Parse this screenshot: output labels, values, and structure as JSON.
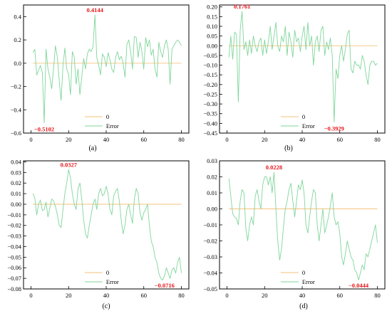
{
  "chart_data": [
    {
      "type": "line",
      "caption": "(a)",
      "xlim": [
        -4,
        84
      ],
      "ylim": [
        -0.6,
        0.5
      ],
      "xticks": [
        0,
        20,
        40,
        60,
        80
      ],
      "xtick_labels": [
        "0",
        "20",
        "40",
        "60",
        "80"
      ],
      "yticks": [
        -0.6,
        -0.4,
        -0.2,
        0.0,
        0.2,
        0.4
      ],
      "ytick_labels": [
        "−0.6",
        "−0.4",
        "−0.2",
        "0.0",
        "0.2",
        "0.4"
      ],
      "legend": {
        "position": "bottom-center",
        "entries": [
          "0",
          "Error"
        ]
      },
      "annotations": [
        {
          "text": "0.4144",
          "x": 34,
          "y": 0.4144
        },
        {
          "text": "−0.5102",
          "x": 7,
          "y": -0.5102
        }
      ],
      "series": [
        {
          "name": "0",
          "color": "#f5c27a",
          "x": [
            1,
            80
          ],
          "y": [
            0,
            0
          ]
        },
        {
          "name": "Error",
          "color": "#7fd69a",
          "x": [
            1,
            2,
            3,
            4,
            5,
            6,
            7,
            8,
            9,
            10,
            11,
            12,
            13,
            14,
            15,
            16,
            17,
            18,
            19,
            20,
            21,
            22,
            23,
            24,
            25,
            26,
            27,
            28,
            29,
            30,
            31,
            32,
            33,
            34,
            35,
            36,
            37,
            38,
            39,
            40,
            41,
            42,
            43,
            44,
            45,
            46,
            47,
            48,
            49,
            50,
            51,
            52,
            53,
            54,
            55,
            56,
            57,
            58,
            59,
            60,
            61,
            62,
            63,
            64,
            65,
            66,
            67,
            68,
            69,
            70,
            71,
            72,
            73,
            74,
            75,
            76,
            77,
            78,
            79,
            80
          ],
          "y": [
            0.09,
            0.12,
            -0.1,
            -0.06,
            -0.02,
            -0.08,
            -0.5102,
            0.12,
            -0.05,
            -0.12,
            -0.22,
            -0.04,
            0.15,
            0.05,
            -0.15,
            -0.32,
            -0.02,
            0.13,
            -0.05,
            -0.1,
            -0.27,
            0.1,
            0.05,
            -0.18,
            -0.05,
            -0.27,
            -0.12,
            0.04,
            -0.05,
            0.08,
            0.12,
            0.1,
            0.14,
            0.4144,
            0.05,
            -0.02,
            -0.1,
            0.08,
            0.05,
            -0.03,
            0.09,
            0.03,
            -0.05,
            -0.08,
            0.05,
            0.1,
            0.03,
            0.06,
            0.0,
            -0.12,
            0.16,
            0.2,
            0.1,
            -0.05,
            0.23,
            0.22,
            0.05,
            0.18,
            0.1,
            -0.05,
            0.22,
            0.14,
            0.2,
            0.07,
            0.12,
            -0.05,
            -0.12,
            0.18,
            0.1,
            0.05,
            0.15,
            0.2,
            0.12,
            -0.18,
            0.12,
            0.15,
            0.18,
            0.2,
            0.18,
            0.15
          ]
        }
      ]
    },
    {
      "type": "line",
      "caption": "(b)",
      "xlim": [
        -4,
        84
      ],
      "ylim": [
        -0.45,
        0.21
      ],
      "xticks": [
        0,
        20,
        40,
        60,
        80
      ],
      "xtick_labels": [
        "0",
        "20",
        "40",
        "60",
        "80"
      ],
      "yticks": [
        -0.45,
        -0.4,
        -0.35,
        -0.3,
        -0.25,
        -0.2,
        -0.15,
        -0.1,
        -0.05,
        0.0,
        0.05,
        0.1,
        0.15,
        0.2
      ],
      "ytick_labels": [
        "−0.45",
        "−0.40",
        "−0.35",
        "−0.30",
        "−0.25",
        "−0.20",
        "−0.15",
        "−0.10",
        "−0.05",
        "0.00",
        "0.05",
        "0.10",
        "0.15",
        "0.20"
      ],
      "legend": {
        "position": "bottom-center",
        "entries": [
          "0",
          "Error"
        ]
      },
      "annotations": [
        {
          "text": "0.1761",
          "x": 8,
          "y": 0.1761
        },
        {
          "text": "−0.3929",
          "x": 57,
          "y": -0.3929
        }
      ],
      "series": [
        {
          "name": "0",
          "color": "#f5c27a",
          "x": [
            1,
            80
          ],
          "y": [
            0,
            0
          ]
        },
        {
          "name": "Error",
          "color": "#7fd69a",
          "x": [
            1,
            2,
            3,
            4,
            5,
            6,
            7,
            8,
            9,
            10,
            11,
            12,
            13,
            14,
            15,
            16,
            17,
            18,
            19,
            20,
            21,
            22,
            23,
            24,
            25,
            26,
            27,
            28,
            29,
            30,
            31,
            32,
            33,
            34,
            35,
            36,
            37,
            38,
            39,
            40,
            41,
            42,
            43,
            44,
            45,
            46,
            47,
            48,
            49,
            50,
            51,
            52,
            53,
            54,
            55,
            56,
            57,
            58,
            59,
            60,
            61,
            62,
            63,
            64,
            65,
            66,
            67,
            68,
            69,
            70,
            71,
            72,
            73,
            74,
            75,
            76,
            77,
            78,
            79,
            80
          ],
          "y": [
            -0.06,
            0.05,
            -0.07,
            0.07,
            0.06,
            -0.29,
            0.08,
            0.1761,
            -0.02,
            0.02,
            -0.05,
            0.03,
            -0.04,
            0.05,
            0.0,
            -0.03,
            0.02,
            0.04,
            -0.05,
            0.03,
            -0.04,
            0.02,
            0.1,
            -0.02,
            0.05,
            0.12,
            0.0,
            -0.03,
            0.05,
            0.02,
            0.1,
            -0.05,
            0.07,
            0.02,
            -0.06,
            0.08,
            0.02,
            0.04,
            -0.03,
            0.05,
            0.1,
            -0.02,
            0.12,
            0.0,
            0.05,
            -0.1,
            0.02,
            0.05,
            -0.03,
            0.08,
            0.1,
            -0.05,
            0.02,
            -0.02,
            0.04,
            -0.05,
            -0.3929,
            -0.12,
            -0.17,
            -0.05,
            0.0,
            -0.08,
            -0.02,
            0.06,
            0.08,
            -0.12,
            -0.14,
            -0.08,
            -0.1,
            -0.1,
            -0.12,
            -0.05,
            -0.08,
            -0.15,
            -0.2,
            -0.1,
            -0.08,
            -0.08,
            -0.1,
            -0.09
          ]
        }
      ]
    },
    {
      "type": "line",
      "caption": "(c)",
      "xlim": [
        -4,
        84
      ],
      "ylim": [
        -0.08,
        0.041
      ],
      "xticks": [
        0,
        20,
        40,
        60,
        80
      ],
      "xtick_labels": [
        "0",
        "20",
        "40",
        "60",
        "80"
      ],
      "yticks": [
        -0.08,
        -0.07,
        -0.06,
        -0.05,
        -0.04,
        -0.03,
        -0.02,
        -0.01,
        0.0,
        0.01,
        0.02,
        0.03,
        0.04
      ],
      "ytick_labels": [
        "−0.08",
        "−0.07",
        "−0.06",
        "−0.05",
        "−0.04",
        "−0.03",
        "−0.02",
        "−0.01",
        "0.00",
        "0.01",
        "0.02",
        "0.03",
        "0.04"
      ],
      "legend": {
        "position": "bottom-center",
        "entries": [
          "0",
          "Error"
        ]
      },
      "annotations": [
        {
          "text": "0.0327",
          "x": 20,
          "y": 0.0327
        },
        {
          "text": "−0.0716",
          "x": 71,
          "y": -0.0716
        }
      ],
      "series": [
        {
          "name": "0",
          "color": "#f5c27a",
          "x": [
            1,
            80
          ],
          "y": [
            0,
            0
          ]
        },
        {
          "name": "Error",
          "color": "#7fd69a",
          "x": [
            1,
            2,
            3,
            4,
            5,
            6,
            7,
            8,
            9,
            10,
            11,
            12,
            13,
            14,
            15,
            16,
            17,
            18,
            19,
            20,
            21,
            22,
            23,
            24,
            25,
            26,
            27,
            28,
            29,
            30,
            31,
            32,
            33,
            34,
            35,
            36,
            37,
            38,
            39,
            40,
            41,
            42,
            43,
            44,
            45,
            46,
            47,
            48,
            49,
            50,
            51,
            52,
            53,
            54,
            55,
            56,
            57,
            58,
            59,
            60,
            61,
            62,
            63,
            64,
            65,
            66,
            67,
            68,
            69,
            70,
            71,
            72,
            73,
            74,
            75,
            76,
            77,
            78,
            79,
            80
          ],
          "y": [
            0.01,
            0.006,
            -0.01,
            0.0,
            0.004,
            -0.006,
            -0.005,
            0.002,
            -0.012,
            -0.004,
            0.005,
            0.003,
            -0.002,
            -0.01,
            -0.02,
            -0.022,
            -0.005,
            0.01,
            0.02,
            0.0327,
            0.025,
            0.01,
            0.0,
            -0.005,
            0.015,
            0.02,
            0.005,
            -0.015,
            -0.028,
            -0.032,
            -0.02,
            -0.01,
            0.0,
            0.005,
            -0.005,
            0.01,
            0.015,
            0.008,
            0.01,
            0.017,
            0.01,
            -0.005,
            -0.01,
            0.008,
            0.012,
            0.015,
            0.003,
            -0.015,
            -0.028,
            -0.02,
            -0.005,
            0.0,
            -0.01,
            -0.018,
            0.005,
            0.015,
            0.01,
            -0.008,
            -0.015,
            -0.008,
            -0.005,
            0.0,
            -0.02,
            -0.035,
            -0.04,
            -0.05,
            -0.055,
            -0.065,
            -0.07,
            -0.0716,
            -0.068,
            -0.06,
            -0.065,
            -0.07,
            -0.062,
            -0.06,
            -0.065,
            -0.055,
            -0.05,
            -0.065
          ]
        }
      ]
    },
    {
      "type": "line",
      "caption": "(d)",
      "xlim": [
        -4,
        84
      ],
      "ylim": [
        -0.05,
        0.03
      ],
      "xticks": [
        0,
        20,
        40,
        60,
        80
      ],
      "xtick_labels": [
        "0",
        "20",
        "40",
        "60",
        "80"
      ],
      "yticks": [
        -0.05,
        -0.04,
        -0.03,
        -0.02,
        -0.01,
        0.0,
        0.01,
        0.02,
        0.03
      ],
      "ytick_labels": [
        "−0.05",
        "−0.04",
        "−0.03",
        "−0.02",
        "−0.01",
        "0.00",
        "0.01",
        "0.02",
        "0.03"
      ],
      "legend": {
        "position": "bottom-center",
        "entries": [
          "0",
          "Error"
        ]
      },
      "annotations": [
        {
          "text": "0.0228",
          "x": 25,
          "y": 0.0228
        },
        {
          "text": "−0.0444",
          "x": 70,
          "y": -0.0444
        }
      ],
      "series": [
        {
          "name": "0",
          "color": "#f5c27a",
          "x": [
            1,
            80
          ],
          "y": [
            0,
            0
          ]
        },
        {
          "name": "Error",
          "color": "#7fd69a",
          "x": [
            1,
            2,
            3,
            4,
            5,
            6,
            7,
            8,
            9,
            10,
            11,
            12,
            13,
            14,
            15,
            16,
            17,
            18,
            19,
            20,
            21,
            22,
            23,
            24,
            25,
            26,
            27,
            28,
            29,
            30,
            31,
            32,
            33,
            34,
            35,
            36,
            37,
            38,
            39,
            40,
            41,
            42,
            43,
            44,
            45,
            46,
            47,
            48,
            49,
            50,
            51,
            52,
            53,
            54,
            55,
            56,
            57,
            58,
            59,
            60,
            61,
            62,
            63,
            64,
            65,
            66,
            67,
            68,
            69,
            70,
            71,
            72,
            73,
            74,
            75,
            76,
            77,
            78,
            79,
            80
          ],
          "y": [
            0.019,
            0.008,
            -0.003,
            -0.005,
            -0.006,
            -0.01,
            0.005,
            0.012,
            0.01,
            -0.012,
            -0.02,
            -0.01,
            -0.005,
            -0.01,
            0.008,
            0.012,
            0.005,
            0.0,
            0.015,
            0.02,
            0.02,
            0.015,
            0.02,
            0.01,
            0.0228,
            0.0,
            -0.02,
            -0.032,
            -0.025,
            -0.012,
            0.0,
            0.005,
            0.012,
            0.016,
            0.005,
            -0.005,
            0.005,
            0.015,
            0.012,
            0.018,
            0.01,
            -0.01,
            -0.015,
            -0.005,
            0.005,
            0.012,
            0.01,
            -0.01,
            -0.02,
            -0.01,
            0.0,
            -0.015,
            -0.01,
            -0.005,
            0.002,
            0.01,
            -0.005,
            -0.01,
            -0.008,
            -0.015,
            -0.03,
            -0.035,
            -0.028,
            -0.02,
            -0.025,
            -0.03,
            -0.032,
            -0.038,
            -0.04,
            -0.0444,
            -0.04,
            -0.035,
            -0.038,
            -0.028,
            -0.03,
            -0.025,
            -0.02,
            -0.015,
            -0.01,
            -0.021
          ]
        }
      ]
    }
  ]
}
